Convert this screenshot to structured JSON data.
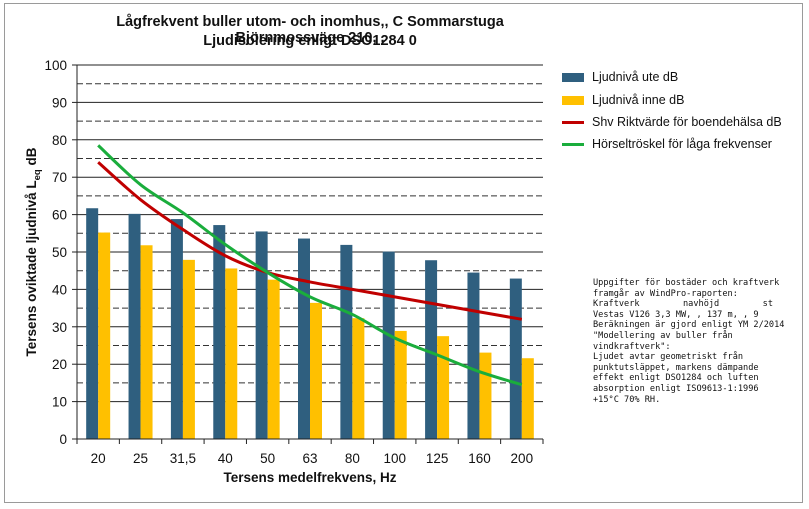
{
  "chart_data": {
    "type": "bar",
    "title_line1": "Lågfrekvent buller utom- och inomhus,, C Sommarstuga Björnmossväge 210, ,",
    "title_line2": "Ljudisolering enligt  DSO1284 0",
    "ylabel_prefix": "Tersens oviktade ljudnivå L",
    "ylabel_sub": "eq",
    "ylabel_suffix": " dB",
    "xlabel": "Tersens medelfrekvens, Hz",
    "ylim": [
      0,
      100
    ],
    "yticks": [
      0,
      10,
      20,
      30,
      40,
      50,
      60,
      70,
      80,
      90,
      100
    ],
    "grid_dashed": [
      15,
      25,
      35,
      45,
      55,
      65,
      75,
      85,
      95
    ],
    "grid": true,
    "legend_position": "right",
    "categories": [
      "20",
      "25",
      "31,5",
      "40",
      "50",
      "63",
      "80",
      "100",
      "125",
      "160",
      "200"
    ],
    "series": [
      {
        "name": "Ljudnivå ute dB",
        "kind": "bar",
        "color": "#2f5f7f",
        "values": [
          61.7,
          60.2,
          58.8,
          57.2,
          55.5,
          53.6,
          51.9,
          50.1,
          47.8,
          44.5,
          42.9
        ]
      },
      {
        "name": "Ljudnivå inne dB",
        "kind": "bar",
        "color": "#ffc000",
        "values": [
          55.2,
          51.8,
          47.9,
          45.6,
          42.6,
          36.4,
          32.3,
          28.9,
          27.5,
          23.1,
          21.6
        ]
      },
      {
        "name": "Shv Riktvärde för boendehälsa dB",
        "kind": "line",
        "color": "#c00000",
        "values": [
          74,
          64,
          56,
          49,
          44.5,
          42,
          40,
          38,
          36,
          34,
          32
        ]
      },
      {
        "name": "Hörseltröskel för låga frekvenser",
        "kind": "line",
        "color": "#1aad3c",
        "values": [
          78.5,
          68,
          60.5,
          52,
          44.5,
          38,
          33.3,
          27,
          22.5,
          18,
          14.5
        ]
      }
    ]
  },
  "note": {
    "lines": [
      "Uppgifter för bostäder och kraftverk",
      "framgår av WindPro-raporten:",
      [
        "Kraftverk",
        "navhöjd",
        "st"
      ],
      "Vestas V126  3,3  MW, , 137  m, , 9",
      "Beräkningen är gjord enligt YM 2/2014",
      "\"Modellering av buller från",
      "vindkraftverk\":",
      "Ljudet avtar geometriskt från",
      "punktutsläppet, markens dämpande",
      "effekt enligt DSO1284 och luften",
      "absorption enligt ISO9613-1:1996",
      "+15°C 70% RH."
    ]
  }
}
